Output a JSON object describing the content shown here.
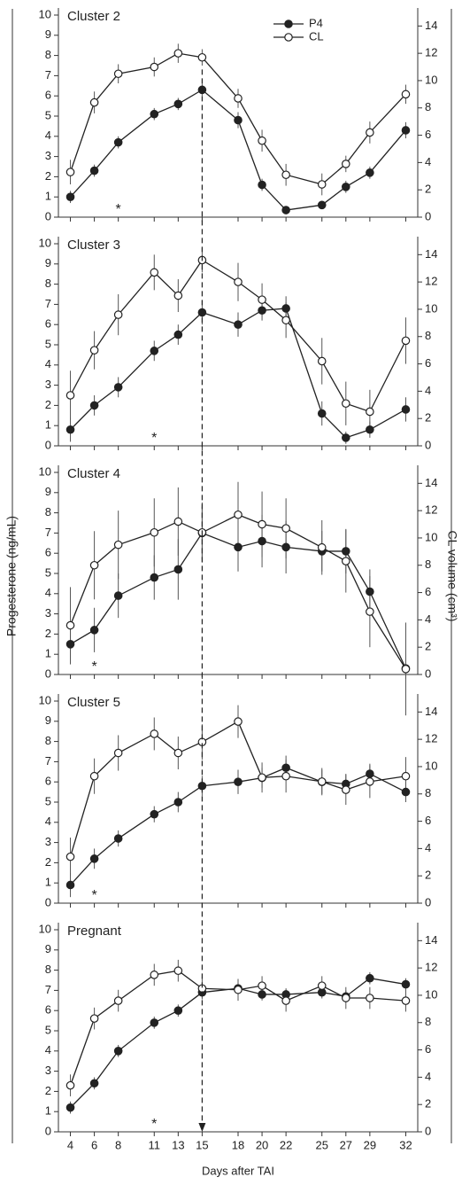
{
  "ylabel": "Progesterone (ng/mL)",
  "y2label": "CL volume (cm³)",
  "xlabel": "Days after TAI",
  "vline": 15,
  "chart_data": [
    {
      "type": "line",
      "title": "Cluster 2",
      "legend": "upper center",
      "show_xtick_labels": false,
      "x": [
        4,
        6,
        8,
        11,
        13,
        15,
        18,
        20,
        22,
        25,
        27,
        29,
        32
      ],
      "xlim": [
        3,
        33
      ],
      "xticks": [
        4,
        6,
        8,
        11,
        13,
        15,
        18,
        20,
        22,
        25,
        27,
        29,
        32
      ],
      "ylim": [
        0,
        10
      ],
      "yticks": [
        0,
        1,
        2,
        3,
        4,
        5,
        6,
        7,
        8,
        9,
        10
      ],
      "y2lim": [
        0,
        14.8
      ],
      "y2ticks": [
        0,
        2,
        4,
        6,
        8,
        10,
        12,
        14
      ],
      "annotation": {
        "text": "*",
        "x": 8
      },
      "series": [
        {
          "name": "P4",
          "color": "#222222",
          "marker": "filled",
          "values": [
            1.0,
            2.3,
            3.7,
            5.1,
            5.6,
            6.3,
            4.8,
            1.6,
            0.35,
            0.6,
            1.5,
            2.2,
            4.3
          ],
          "errors": [
            0.3,
            0.3,
            0.3,
            0.3,
            0.3,
            0.3,
            0.4,
            0.3,
            0.2,
            0.2,
            0.3,
            0.3,
            0.4
          ]
        },
        {
          "name": "CL",
          "color": "#222222",
          "marker": "open",
          "axis": "y2",
          "values": [
            3.3,
            8.4,
            10.5,
            11.0,
            12.0,
            11.7,
            8.7,
            5.6,
            3.1,
            2.4,
            3.9,
            6.2,
            9.0
          ],
          "errors": [
            0.9,
            0.8,
            0.7,
            0.7,
            0.7,
            0.6,
            0.7,
            0.8,
            0.8,
            0.8,
            0.6,
            0.8,
            0.7
          ]
        }
      ]
    },
    {
      "type": "line",
      "title": "Cluster 3",
      "show_xtick_labels": false,
      "x": [
        4,
        6,
        8,
        11,
        13,
        15,
        18,
        20,
        22,
        25,
        27,
        29,
        32
      ],
      "xlim": [
        3,
        33
      ],
      "xticks": [
        4,
        6,
        8,
        11,
        13,
        15,
        18,
        20,
        22,
        25,
        27,
        29,
        32
      ],
      "ylim": [
        0,
        10
      ],
      "yticks": [
        0,
        1,
        2,
        3,
        4,
        5,
        6,
        7,
        8,
        9,
        10
      ],
      "y2lim": [
        0,
        14.8
      ],
      "y2ticks": [
        0,
        2,
        4,
        6,
        8,
        10,
        12,
        14
      ],
      "annotation": {
        "text": "*",
        "x": 11
      },
      "series": [
        {
          "name": "P4",
          "color": "#222222",
          "marker": "filled",
          "values": [
            0.8,
            2.0,
            2.9,
            4.7,
            5.5,
            6.6,
            6.0,
            6.7,
            6.8,
            1.6,
            0.4,
            0.8,
            1.8
          ],
          "errors": [
            0.6,
            0.5,
            0.5,
            0.5,
            0.5,
            0.6,
            0.6,
            0.5,
            0.6,
            0.6,
            0.3,
            0.4,
            0.6
          ]
        },
        {
          "name": "CL",
          "color": "#222222",
          "marker": "open",
          "axis": "y2",
          "values": [
            3.7,
            7.0,
            9.6,
            12.7,
            11.0,
            13.6,
            12.0,
            10.7,
            9.2,
            6.2,
            3.1,
            2.5,
            7.7
          ],
          "errors": [
            1.8,
            1.4,
            1.5,
            1.3,
            1.2,
            0.9,
            1.4,
            1.2,
            1.3,
            1.7,
            1.6,
            1.6,
            1.7
          ]
        }
      ]
    },
    {
      "type": "line",
      "title": "Cluster 4",
      "show_xtick_labels": false,
      "x": [
        4,
        6,
        8,
        11,
        13,
        15,
        18,
        20,
        22,
        25,
        27,
        29,
        32
      ],
      "xlim": [
        3,
        33
      ],
      "xticks": [
        4,
        6,
        8,
        11,
        13,
        15,
        18,
        20,
        22,
        25,
        27,
        29,
        32
      ],
      "ylim": [
        0,
        10
      ],
      "yticks": [
        0,
        1,
        2,
        3,
        4,
        5,
        6,
        7,
        8,
        9,
        10
      ],
      "y2lim": [
        0,
        14.8
      ],
      "y2ticks": [
        0,
        2,
        4,
        6,
        8,
        10,
        12,
        14
      ],
      "annotation": {
        "text": "*",
        "x": 6
      },
      "series": [
        {
          "name": "P4",
          "color": "#222222",
          "marker": "filled",
          "values": [
            1.5,
            2.2,
            3.9,
            4.8,
            5.2,
            7.0,
            6.3,
            6.6,
            6.3,
            6.1,
            6.1,
            4.1,
            0.3
          ],
          "errors": [
            1.0,
            1.1,
            1.1,
            1.1,
            1.5,
            1.3,
            1.2,
            1.3,
            1.3,
            1.0,
            1.1,
            1.1,
            0.3
          ]
        },
        {
          "name": "CL",
          "color": "#222222",
          "marker": "open",
          "axis": "y2",
          "values": [
            3.6,
            8.0,
            9.5,
            10.4,
            11.2,
            10.4,
            11.7,
            11.0,
            10.7,
            9.3,
            8.3,
            4.6,
            0.4
          ],
          "errors": [
            2.8,
            2.5,
            2.5,
            2.5,
            2.5,
            2.2,
            2.4,
            2.4,
            2.2,
            2.0,
            2.3,
            2.6,
            3.4
          ]
        }
      ]
    },
    {
      "type": "line",
      "title": "Cluster 5",
      "show_xtick_labels": false,
      "x": [
        4,
        6,
        8,
        11,
        13,
        15,
        18,
        20,
        22,
        25,
        27,
        29,
        32
      ],
      "xlim": [
        3,
        33
      ],
      "xticks": [
        4,
        6,
        8,
        11,
        13,
        15,
        18,
        20,
        22,
        25,
        27,
        29,
        32
      ],
      "ylim": [
        0,
        10
      ],
      "yticks": [
        0,
        1,
        2,
        3,
        4,
        5,
        6,
        7,
        8,
        9,
        10
      ],
      "y2lim": [
        0,
        14.8
      ],
      "y2ticks": [
        0,
        2,
        4,
        6,
        8,
        10,
        12,
        14
      ],
      "annotation": {
        "text": "*",
        "x": 6
      },
      "series": [
        {
          "name": "P4",
          "color": "#222222",
          "marker": "filled",
          "values": [
            0.9,
            2.2,
            3.2,
            4.4,
            5.0,
            5.8,
            6.0,
            6.2,
            6.7,
            6.0,
            5.9,
            6.4,
            5.5
          ],
          "errors": [
            0.6,
            0.5,
            0.4,
            0.4,
            0.5,
            0.5,
            0.6,
            0.5,
            0.6,
            0.6,
            0.5,
            0.5,
            0.5
          ]
        },
        {
          "name": "CL",
          "color": "#222222",
          "marker": "open",
          "axis": "y2",
          "values": [
            3.4,
            9.3,
            11.0,
            12.4,
            11.0,
            11.8,
            13.3,
            9.2,
            9.3,
            8.9,
            8.3,
            8.9,
            9.3
          ],
          "errors": [
            1.4,
            1.3,
            1.3,
            1.2,
            1.2,
            1.3,
            1.2,
            1.1,
            1.2,
            1.0,
            1.1,
            1.2,
            1.4
          ]
        }
      ]
    },
    {
      "type": "line",
      "title": "Pregnant",
      "show_xtick_labels": true,
      "x": [
        4,
        6,
        8,
        11,
        13,
        15,
        18,
        20,
        22,
        25,
        27,
        29,
        32
      ],
      "xlim": [
        3,
        33
      ],
      "xticks": [
        4,
        6,
        8,
        11,
        13,
        15,
        18,
        20,
        22,
        25,
        27,
        29,
        32
      ],
      "ylim": [
        0,
        10
      ],
      "yticks": [
        0,
        1,
        2,
        3,
        4,
        5,
        6,
        7,
        8,
        9,
        10
      ],
      "y2lim": [
        0,
        14.8
      ],
      "y2ticks": [
        0,
        2,
        4,
        6,
        8,
        10,
        12,
        14
      ],
      "annotation": {
        "text": "*",
        "x": 11
      },
      "series": [
        {
          "name": "P4",
          "color": "#222222",
          "marker": "filled",
          "values": [
            1.2,
            2.4,
            4.0,
            5.4,
            6.0,
            6.9,
            7.1,
            6.8,
            6.8,
            6.9,
            6.7,
            7.6,
            7.3
          ],
          "errors": [
            0.3,
            0.3,
            0.3,
            0.3,
            0.3,
            0.3,
            0.3,
            0.3,
            0.3,
            0.3,
            0.3,
            0.3,
            0.3
          ]
        },
        {
          "name": "CL",
          "color": "#222222",
          "marker": "open",
          "axis": "y2",
          "values": [
            3.4,
            8.3,
            9.6,
            11.5,
            11.8,
            10.5,
            10.4,
            10.7,
            9.6,
            10.7,
            9.8,
            9.8,
            9.6
          ],
          "errors": [
            0.8,
            0.8,
            0.8,
            0.8,
            0.8,
            0.8,
            0.8,
            0.7,
            0.8,
            0.7,
            0.8,
            0.8,
            0.8
          ]
        }
      ]
    }
  ]
}
